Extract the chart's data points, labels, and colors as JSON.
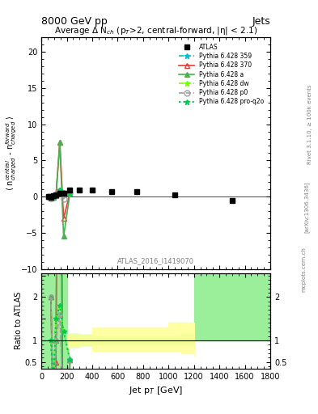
{
  "title_top": "8000 GeV pp",
  "title_right": "Jets",
  "plot_title": "Average Δ N$_{ch}$ (p$_T$>2, central-forward, |η| < 2.1)",
  "watermark": "ATLAS_2016_I1419070",
  "ylabel_main": "⟨ n$^{central}_{charged}$ - n$^{forward}_{charged}$ ⟩",
  "ylabel_ratio": "Ratio to ATLAS",
  "xlabel": "Jet p$_T$ [GeV]",
  "rivet_label": "Rivet 3.1.10, ≥ 100k events",
  "arxiv_label": "[arXiv:1306.3436]",
  "mcplots_label": "mcplots.cern.ch",
  "ylim_main": [
    -10,
    22
  ],
  "ylim_ratio": [
    0.35,
    2.55
  ],
  "xlim": [
    0,
    1800
  ],
  "atlas_x": [
    55,
    75,
    95,
    115,
    145,
    175,
    225,
    300,
    400,
    550,
    750,
    1050,
    1500
  ],
  "atlas_y": [
    0.0,
    -0.1,
    0.1,
    0.2,
    0.5,
    0.5,
    0.9,
    0.9,
    0.9,
    0.7,
    0.7,
    0.3,
    -0.5
  ],
  "pythia359_x": [
    55,
    75,
    95,
    115,
    145,
    175,
    225
  ],
  "pythia359_y": [
    0.0,
    -0.1,
    0.0,
    0.3,
    0.9,
    0.6,
    0.5
  ],
  "pythia370_x": [
    55,
    75,
    95,
    115,
    145,
    175,
    225
  ],
  "pythia370_y": [
    0.0,
    -0.2,
    -0.1,
    0.1,
    7.5,
    -3.0,
    0.5
  ],
  "pythia_a_x": [
    55,
    75,
    95,
    115,
    145,
    175,
    225
  ],
  "pythia_a_y": [
    0.0,
    -0.2,
    -0.1,
    0.2,
    7.5,
    -5.5,
    0.5
  ],
  "pythia_dw_x": [
    55,
    75,
    95,
    115,
    145,
    175,
    225
  ],
  "pythia_dw_y": [
    0.0,
    -0.1,
    0.0,
    0.3,
    0.9,
    0.6,
    0.5
  ],
  "pythia_p0_x": [
    55,
    75,
    95,
    115,
    145,
    175,
    225
  ],
  "pythia_p0_y": [
    0.0,
    -0.2,
    -0.1,
    0.2,
    0.8,
    -0.3,
    0.5
  ],
  "pythia_proq2o_x": [
    55,
    75,
    95,
    115,
    145,
    175,
    225
  ],
  "pythia_proq2o_y": [
    0.0,
    -0.1,
    0.0,
    0.3,
    0.9,
    0.6,
    0.5
  ],
  "ratio_band_green_x": [
    0,
    100,
    200,
    300,
    400,
    500,
    600,
    700,
    800,
    900,
    1000,
    1100,
    1200,
    1800
  ],
  "ratio_band_green_low": [
    0.35,
    0.35,
    0.85,
    0.88,
    0.9,
    0.9,
    0.9,
    0.9,
    0.9,
    0.9,
    0.9,
    0.9,
    1.0,
    1.0
  ],
  "ratio_band_green_high": [
    2.55,
    2.55,
    1.15,
    1.12,
    1.1,
    1.1,
    1.1,
    1.1,
    1.1,
    1.1,
    1.1,
    1.15,
    2.55,
    2.55
  ],
  "ratio_band_yellow_x": [
    200,
    300,
    400,
    500,
    600,
    700,
    800,
    900,
    1000,
    1100,
    1200
  ],
  "ratio_band_yellow_low": [
    0.85,
    0.88,
    0.75,
    0.75,
    0.75,
    0.75,
    0.75,
    0.75,
    0.75,
    0.7,
    0.65
  ],
  "ratio_band_yellow_high": [
    1.15,
    1.12,
    1.3,
    1.3,
    1.3,
    1.3,
    1.3,
    1.3,
    1.4,
    1.4,
    1.4
  ],
  "color_atlas": "#000000",
  "color_359": "#00bcd4",
  "color_370": "#e53935",
  "color_a": "#4caf50",
  "color_dw": "#76ff03",
  "color_p0": "#9e9e9e",
  "color_proq2o": "#00c853",
  "color_green_band": "#90ee90",
  "color_yellow_band": "#ffff99"
}
